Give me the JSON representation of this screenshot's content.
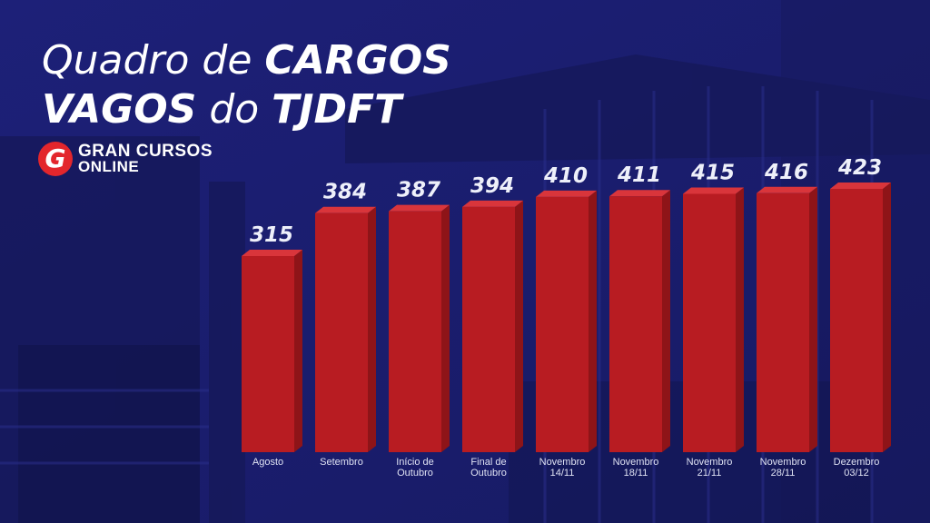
{
  "title": {
    "part1": "Quadro de ",
    "part2": "CARGOS",
    "part3": "VAGOS",
    "part4": " do ",
    "part5": "TJDFT"
  },
  "logo": {
    "mark": "G",
    "line1": "GRAN CURSOS",
    "line2": "ONLINE"
  },
  "colors": {
    "background": "#1c1f73",
    "bar_front": "#b81c22",
    "bar_side": "#8e1418",
    "bar_top": "#d9353b",
    "text": "#ffffff"
  },
  "chart_data": {
    "type": "bar",
    "title": "Quadro de CARGOS VAGOS do TJDFT",
    "categories": [
      [
        "Agosto"
      ],
      [
        "Setembro"
      ],
      [
        "Início de",
        "Outubro"
      ],
      [
        "Final de",
        "Outubro"
      ],
      [
        "Novembro",
        "14/11"
      ],
      [
        "Novembro",
        "18/11"
      ],
      [
        "Novembro",
        "21/11"
      ],
      [
        "Novembro",
        "28/11"
      ],
      [
        "Dezembro",
        "03/12"
      ]
    ],
    "values": [
      315,
      384,
      387,
      394,
      410,
      411,
      415,
      416,
      423
    ],
    "value_labels": [
      "315",
      "384",
      "387",
      "394",
      "410",
      "411",
      "415",
      "416",
      "423"
    ],
    "bar_style": "3d",
    "grid": false,
    "legend": "none"
  }
}
